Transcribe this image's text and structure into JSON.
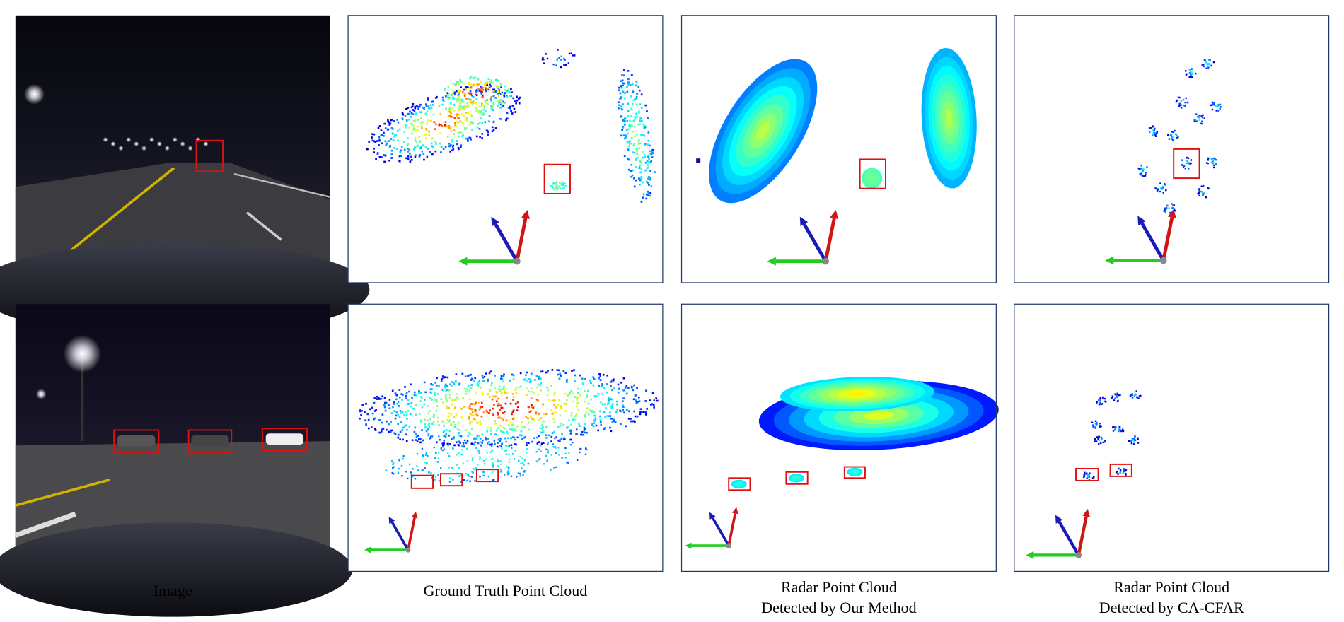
{
  "captions": [
    {
      "lines": [
        "Image"
      ]
    },
    {
      "lines": [
        "Ground Truth Point Cloud"
      ]
    },
    {
      "lines": [
        "Radar Point Cloud",
        "Detected by Our Method"
      ]
    },
    {
      "lines": [
        "Radar Point Cloud",
        "Detected by CA-CFAR"
      ]
    }
  ]
}
